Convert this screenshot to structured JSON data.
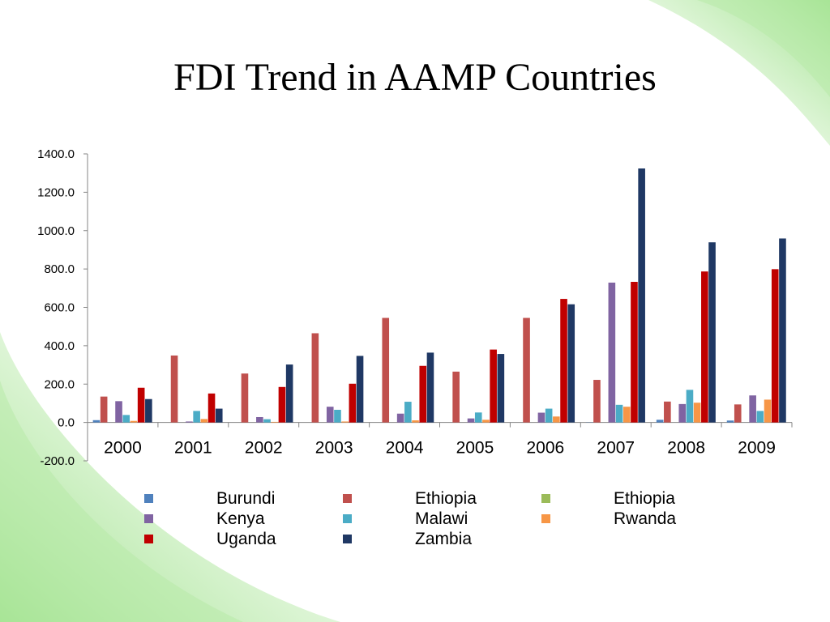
{
  "slide": {
    "title": "FDI Trend in AAMP Countries"
  },
  "chart_data": {
    "type": "bar",
    "title": "",
    "xlabel": "",
    "ylabel": "",
    "ylim": [
      -200,
      1400
    ],
    "yticks": [
      "1400.0",
      "1200.0",
      "1000.0",
      "800.0",
      "600.0",
      "400.0",
      "200.0",
      "0.0",
      "-200.0"
    ],
    "ytick_values": [
      1400,
      1200,
      1000,
      800,
      600,
      400,
      200,
      0,
      -200
    ],
    "grid": false,
    "legend": "bottom",
    "categories": [
      "2000",
      "2001",
      "2002",
      "2003",
      "2004",
      "2005",
      "2006",
      "2007",
      "2008",
      "2009"
    ],
    "series": [
      {
        "name": "Burundi",
        "color": "#4F81BD",
        "values": [
          12,
          0,
          0,
          0,
          0,
          0,
          0,
          1,
          14,
          10
        ]
      },
      {
        "name": "Ethiopia",
        "color": "#C0504D",
        "values": [
          135,
          349,
          255,
          465,
          545,
          265,
          545,
          222,
          109,
          94
        ]
      },
      {
        "name": "Ethiopia",
        "color": "#9BBB59",
        "values": [
          0,
          0,
          0,
          0,
          0,
          0,
          0,
          0,
          0,
          0
        ]
      },
      {
        "name": "Kenya",
        "color": "#8064A2",
        "values": [
          111,
          5,
          28,
          82,
          46,
          21,
          51,
          729,
          96,
          141
        ]
      },
      {
        "name": "Malawi",
        "color": "#4BACC6",
        "values": [
          39,
          60,
          17,
          66,
          108,
          52,
          72,
          92,
          170,
          60
        ]
      },
      {
        "name": "Rwanda",
        "color": "#F79646",
        "values": [
          8,
          18,
          3,
          5,
          11,
          14,
          31,
          82,
          103,
          119
        ]
      },
      {
        "name": "Uganda",
        "color": "#C00000",
        "values": [
          181,
          151,
          185,
          202,
          295,
          380,
          644,
          733,
          787,
          799
        ]
      },
      {
        "name": "Zambia",
        "color": "#1F3864",
        "values": [
          122,
          72,
          302,
          347,
          364,
          357,
          616,
          1324,
          939,
          959
        ]
      }
    ]
  }
}
